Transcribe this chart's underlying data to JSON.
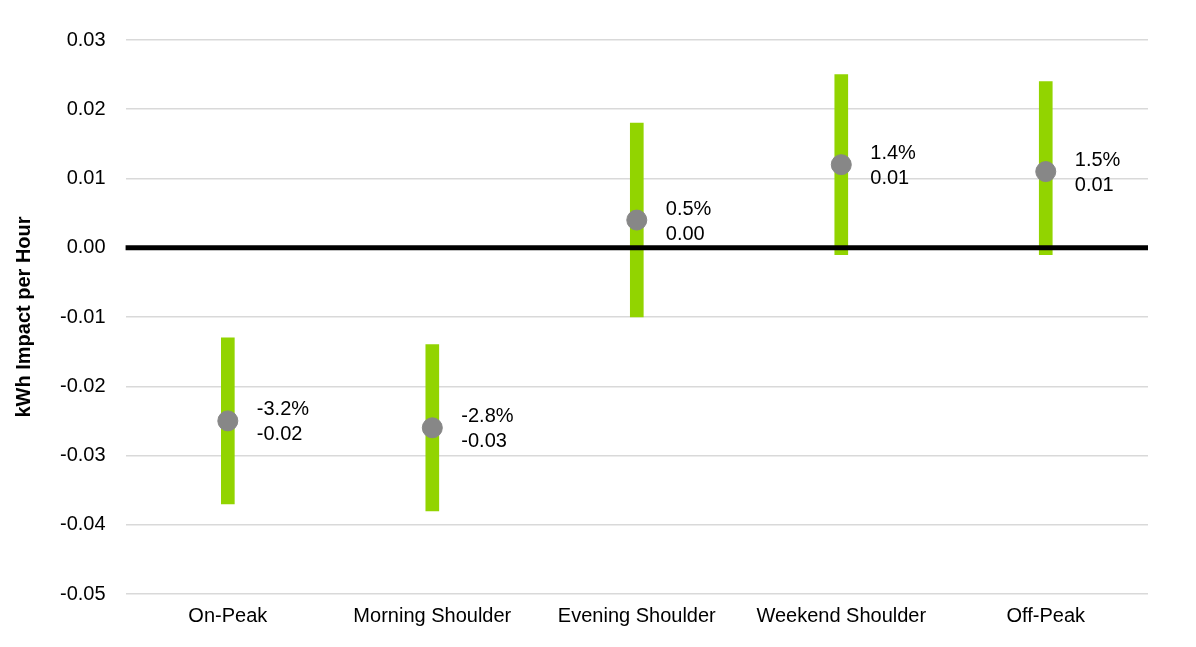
{
  "chart_data": {
    "type": "bar",
    "ylabel": "kWh Impact per Hour",
    "categories": [
      "On-Peak",
      "Morning Shoulder",
      "Evening Shoulder",
      "Weekend Shoulder",
      "Off-Peak"
    ],
    "series": [
      {
        "color": "#92d400",
        "base": [
          -0.037,
          -0.038,
          -0.01,
          -0.001,
          -0.001
        ],
        "values": [
          0.024,
          0.024,
          0.028,
          0.026,
          0.025
        ]
      },
      {
        "type": "scatter",
        "color": "#878787",
        "marker": "circle",
        "x": [
          "On-Peak",
          "Morning Shoulder",
          "Evening Shoulder",
          "Weekend Shoulder",
          "Off-Peak"
        ],
        "values": [
          -0.025,
          -0.026,
          0.004,
          0.012,
          0.011
        ],
        "value_labels": [
          "-3.2%\n-0.02",
          "-2.8%\n-0.03",
          "0.5%\n0.00",
          "1.4%\n0.01",
          "1.5%\n0.01"
        ]
      }
    ],
    "ylim": [
      -0.05,
      0.03
    ],
    "yticks": [
      -0.05,
      -0.04,
      -0.03,
      -0.02,
      -0.01,
      {
        "value": 0,
        "label": "0.00"
      },
      0.01,
      0.02,
      0.03
    ],
    "ref_lines": [
      {
        "axis": "y",
        "value": 0,
        "color": "#000000"
      }
    ],
    "grid": "y",
    "legend": false
  }
}
